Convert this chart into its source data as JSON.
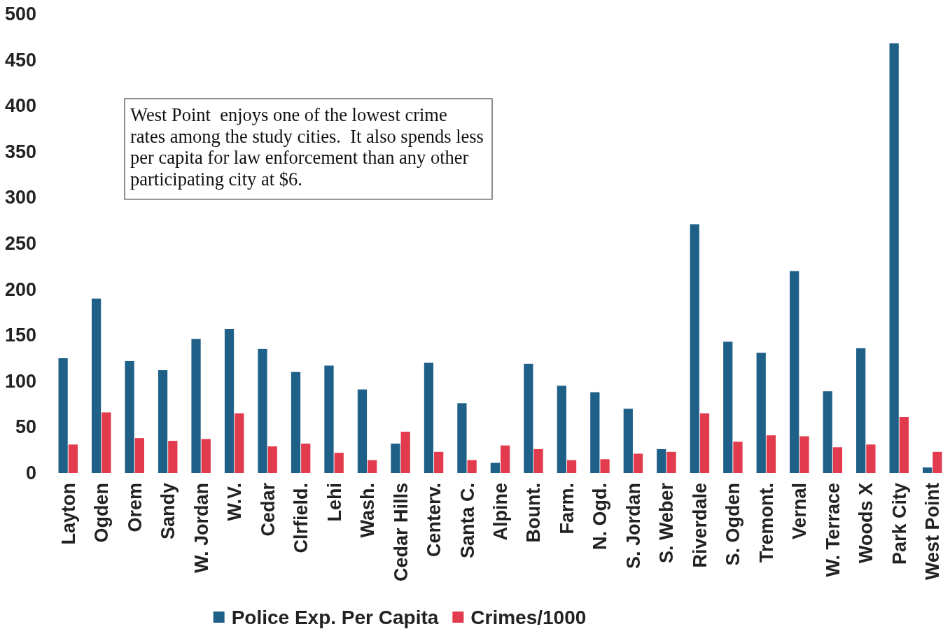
{
  "chart_data": {
    "type": "bar",
    "categories": [
      "Layton",
      "Ogden",
      "Orem",
      "Sandy",
      "W. Jordan",
      "W.V.",
      "Cedar",
      "Clrfield.",
      "Lehi",
      "Wash.",
      "Cedar Hills",
      "Centerv.",
      "Santa C.",
      "Alpine",
      "Bount.",
      "Farm.",
      "N. Ogd.",
      "S. Jordan",
      "S. Weber",
      "Riverdale",
      "S. Ogden",
      "Tremont.",
      "Vernal",
      "W. Terrace",
      "Woods X",
      "Park City",
      "West Point"
    ],
    "series": [
      {
        "name": "Police Exp. Per Capita",
        "color": "#1f6088",
        "values": [
          125,
          190,
          122,
          112,
          146,
          157,
          135,
          110,
          117,
          91,
          32,
          120,
          76,
          11,
          119,
          95,
          88,
          70,
          26,
          271,
          143,
          131,
          220,
          89,
          136,
          468,
          6
        ]
      },
      {
        "name": "Crimes/1000",
        "color": "#e13b4d",
        "values": [
          31,
          66,
          38,
          35,
          37,
          65,
          29,
          32,
          22,
          14,
          45,
          23,
          14,
          30,
          26,
          14,
          15,
          21,
          23,
          65,
          34,
          41,
          40,
          28,
          31,
          61,
          23
        ]
      }
    ],
    "ylim": [
      0,
      500
    ],
    "yticks": [
      0,
      50,
      100,
      150,
      200,
      250,
      300,
      350,
      400,
      450,
      500
    ],
    "legend": "bottom",
    "annotations": [
      "West Point  enjoys one of the lowest crime rates among the study cities.  It also spends less per capita for law enforcement than any other participating city at $6."
    ]
  }
}
